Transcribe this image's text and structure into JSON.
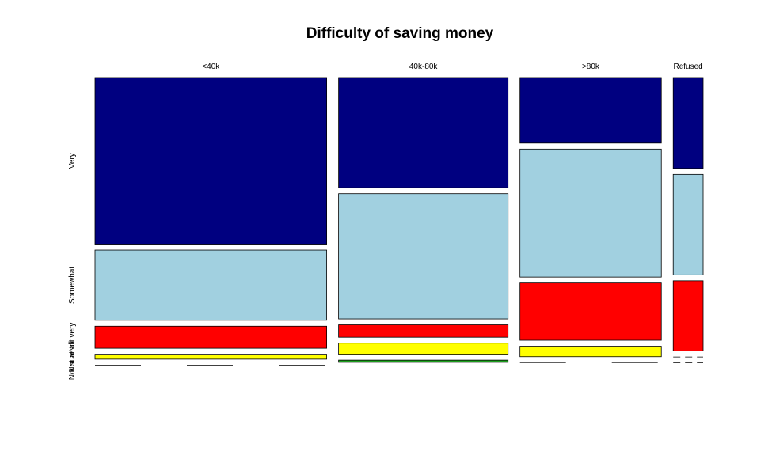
{
  "chart_data": {
    "type": "mosaic",
    "title": "Difficulty of saving money",
    "columns": [
      "<40k",
      "40k-80k",
      ">80k",
      "Refused"
    ],
    "column_weights": [
      0.395,
      0.289,
      0.241,
      0.051
    ],
    "rows": [
      "Very",
      "Somewhat",
      "Not very",
      "Not at all",
      "Not sure"
    ],
    "series": [
      {
        "column": "<40k",
        "proportions": [
          0.605,
          0.255,
          0.08,
          0.018,
          0.0
        ]
      },
      {
        "column": "40k-80k",
        "proportions": [
          0.4,
          0.455,
          0.045,
          0.04,
          0.008
        ]
      },
      {
        "column": ">80k",
        "proportions": [
          0.238,
          0.465,
          0.208,
          0.038,
          0.0
        ]
      },
      {
        "column": "Refused",
        "proportions": [
          0.33,
          0.365,
          0.255,
          0.0,
          0.0
        ]
      }
    ],
    "colors": [
      "#000080",
      "#a1d0e0",
      "#ff0000",
      "#ffff00",
      "#1fa01f"
    ]
  }
}
